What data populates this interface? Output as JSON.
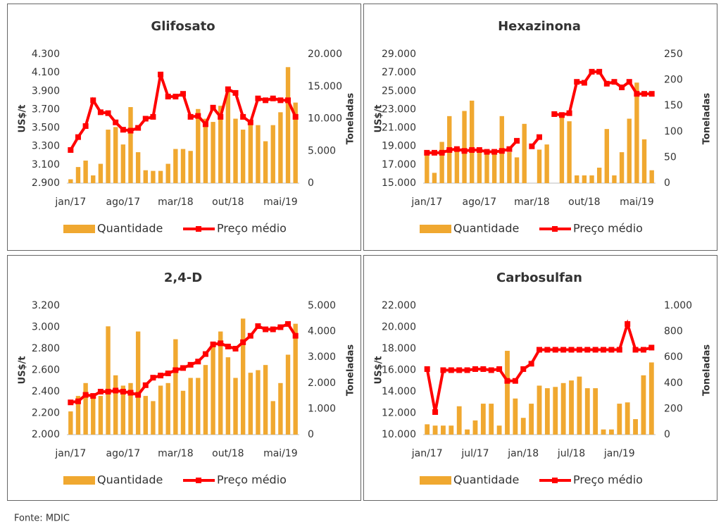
{
  "chart_data": [
    {
      "type": "combo",
      "title": "Glifosato",
      "ylabel": "US$/t",
      "y2label": "Toneladas",
      "categories": [
        "jan/17",
        null,
        null,
        null,
        null,
        null,
        null,
        "ago/17",
        null,
        null,
        null,
        null,
        null,
        null,
        "mar/18",
        null,
        null,
        null,
        null,
        null,
        null,
        "out/18",
        null,
        null,
        null,
        null,
        null,
        null,
        "mai/19",
        null,
        null
      ],
      "series": [
        {
          "name": "Quantidade",
          "color": "#f0a830",
          "axis": "y2",
          "values": [
            600,
            2500,
            3500,
            1200,
            3000,
            8300,
            8700,
            6000,
            11800,
            4800,
            2000,
            1900,
            1900,
            3000,
            5300,
            5300,
            5000,
            11500,
            10000,
            9500,
            12000,
            14500,
            10000,
            8300,
            9500,
            9000,
            6500,
            9000,
            11000,
            18000,
            12500
          ]
        },
        {
          "name": "Preço médio",
          "color": "#ff0000",
          "values": [
            3260,
            3400,
            3520,
            3800,
            3670,
            3660,
            3560,
            3480,
            3470,
            3500,
            3600,
            3620,
            4080,
            3840,
            3840,
            3870,
            3620,
            3630,
            3540,
            3720,
            3620,
            3920,
            3880,
            3620,
            3560,
            3820,
            3800,
            3820,
            3800,
            3800,
            3620
          ]
        }
      ],
      "ylim": [
        2900,
        4300
      ],
      "yticks": [
        {
          "value": 2900,
          "label": "2.900"
        },
        {
          "value": 3100,
          "label": "3.100"
        },
        {
          "value": 3300,
          "label": "3.300"
        },
        {
          "value": 3500,
          "label": "3.500"
        },
        {
          "value": 3700,
          "label": "3.700"
        },
        {
          "value": 3900,
          "label": "3.900"
        },
        {
          "value": 4100,
          "label": "4.100"
        },
        {
          "value": 4300,
          "label": "4.300"
        }
      ],
      "y2lim": [
        0,
        20000
      ],
      "y2ticks": [
        0,
        {
          "value": 5000,
          "label": "5.000"
        },
        {
          "value": 10000,
          "label": "10.000"
        },
        {
          "value": 15000,
          "label": "15.000"
        },
        {
          "value": 20000,
          "label": "20.000"
        }
      ]
    },
    {
      "type": "combo",
      "title": "Hexazinona",
      "ylabel": "US$/t",
      "y2label": "Toneladas",
      "categories": [
        "jan/17",
        null,
        null,
        null,
        null,
        null,
        null,
        "ago/17",
        null,
        null,
        null,
        null,
        null,
        null,
        "mar/18",
        null,
        null,
        null,
        null,
        null,
        null,
        "out/18",
        null,
        null,
        null,
        null,
        null,
        null,
        "mai/19",
        null,
        null
      ],
      "series": [
        {
          "name": "Quantidade",
          "color": "#f0a830",
          "axis": "y2",
          "values": [
            60,
            20,
            80,
            130,
            65,
            140,
            160,
            60,
            60,
            60,
            130,
            60,
            50,
            115,
            0,
            65,
            75,
            0,
            130,
            120,
            15,
            15,
            15,
            30,
            105,
            15,
            60,
            125,
            195,
            85,
            25
          ]
        },
        {
          "name": "Preço médio",
          "color": "#ff0000",
          "values": [
            18300,
            18300,
            18300,
            18600,
            18700,
            18500,
            18600,
            18600,
            18400,
            18400,
            18500,
            18700,
            19600,
            null,
            19000,
            20000,
            null,
            22500,
            22400,
            22600,
            26000,
            25900,
            27100,
            27100,
            25800,
            26000,
            25400,
            26000,
            24700,
            24700,
            24700
          ]
        }
      ],
      "ylim": [
        15000,
        29000
      ],
      "yticks": [
        {
          "value": 15000,
          "label": "15.000"
        },
        {
          "value": 17000,
          "label": "17.000"
        },
        {
          "value": 19000,
          "label": "19.000"
        },
        {
          "value": 21000,
          "label": "21.000"
        },
        {
          "value": 23000,
          "label": "23.000"
        },
        {
          "value": 25000,
          "label": "25.000"
        },
        {
          "value": 27000,
          "label": "27.000"
        },
        {
          "value": 29000,
          "label": "29.000"
        }
      ],
      "y2lim": [
        0,
        250
      ],
      "y2ticks": [
        0,
        50,
        100,
        150,
        200,
        250
      ]
    },
    {
      "type": "combo",
      "title": "2,4-D",
      "ylabel": "US$/t",
      "y2label": "Toneladas",
      "categories": [
        "jan/17",
        null,
        null,
        null,
        null,
        null,
        null,
        "ago/17",
        null,
        null,
        null,
        null,
        null,
        null,
        "mar/18",
        null,
        null,
        null,
        null,
        null,
        null,
        "out/18",
        null,
        null,
        null,
        null,
        null,
        null,
        "mai/19",
        null,
        null
      ],
      "series": [
        {
          "name": "Quantidade",
          "color": "#f0a830",
          "axis": "y2",
          "values": [
            900,
            1500,
            2000,
            1400,
            1500,
            4200,
            2300,
            1900,
            2000,
            4000,
            1500,
            1300,
            1900,
            2000,
            3700,
            1700,
            2200,
            2200,
            2700,
            3600,
            4000,
            3000,
            2200,
            4500,
            2400,
            2500,
            2700,
            1300,
            2000,
            3100,
            4300
          ]
        },
        {
          "name": "Preço médio",
          "color": "#ff0000",
          "values": [
            2300,
            2310,
            2370,
            2360,
            2400,
            2400,
            2410,
            2400,
            2390,
            2370,
            2460,
            2530,
            2550,
            2570,
            2600,
            2620,
            2650,
            2680,
            2750,
            2840,
            2850,
            2820,
            2800,
            2860,
            2920,
            3010,
            2980,
            2980,
            3000,
            3030,
            2920
          ]
        }
      ],
      "ylim": [
        2000,
        3200
      ],
      "yticks": [
        {
          "value": 2000,
          "label": "2.000"
        },
        {
          "value": 2200,
          "label": "2.200"
        },
        {
          "value": 2400,
          "label": "2.400"
        },
        {
          "value": 2600,
          "label": "2.600"
        },
        {
          "value": 2800,
          "label": "2.800"
        },
        {
          "value": 3000,
          "label": "3.000"
        },
        {
          "value": 3200,
          "label": "3.200"
        }
      ],
      "y2lim": [
        0,
        5000
      ],
      "y2ticks": [
        0,
        {
          "value": 1000,
          "label": "1.000"
        },
        {
          "value": 2000,
          "label": "2.000"
        },
        {
          "value": 3000,
          "label": "3.000"
        },
        {
          "value": 4000,
          "label": "4.000"
        },
        {
          "value": 5000,
          "label": "5.000"
        }
      ]
    },
    {
      "type": "combo",
      "title": "Carbosulfan",
      "ylabel": "US$/t",
      "y2label": "Toneladas",
      "categories": [
        "jan/17",
        null,
        null,
        null,
        null,
        null,
        "jul/17",
        null,
        null,
        null,
        null,
        null,
        "jan/18",
        null,
        null,
        null,
        null,
        null,
        "jul/18",
        null,
        null,
        null,
        null,
        null,
        "jan/19",
        null,
        null,
        null,
        null
      ],
      "series": [
        {
          "name": "Quantidade",
          "color": "#f0a830",
          "axis": "y2",
          "values": [
            80,
            70,
            70,
            70,
            220,
            40,
            110,
            240,
            240,
            70,
            650,
            280,
            130,
            240,
            380,
            360,
            370,
            400,
            420,
            450,
            360,
            360,
            40,
            40,
            240,
            250,
            120,
            460,
            560
          ]
        },
        {
          "name": "Preço médio",
          "color": "#ff0000",
          "values": [
            16100,
            12100,
            16000,
            16000,
            16000,
            16000,
            16100,
            16100,
            16000,
            16100,
            15000,
            15000,
            16100,
            16600,
            17900,
            17900,
            17900,
            17900,
            17900,
            17900,
            17900,
            17900,
            17900,
            17900,
            17900,
            20300,
            17900,
            17900,
            18100
          ]
        }
      ],
      "ylim": [
        10000,
        22000
      ],
      "yticks": [
        {
          "value": 10000,
          "label": "10.000"
        },
        {
          "value": 12000,
          "label": "12.000"
        },
        {
          "value": 14000,
          "label": "14.000"
        },
        {
          "value": 16000,
          "label": "16.000"
        },
        {
          "value": 18000,
          "label": "18.000"
        },
        {
          "value": 20000,
          "label": "20.000"
        },
        {
          "value": 22000,
          "label": "22.000"
        }
      ],
      "y2lim": [
        0,
        1000
      ],
      "y2ticks": [
        0,
        200,
        400,
        600,
        800,
        {
          "value": 1000,
          "label": "1.000"
        }
      ]
    }
  ],
  "footer": "Fonte: MDIC"
}
